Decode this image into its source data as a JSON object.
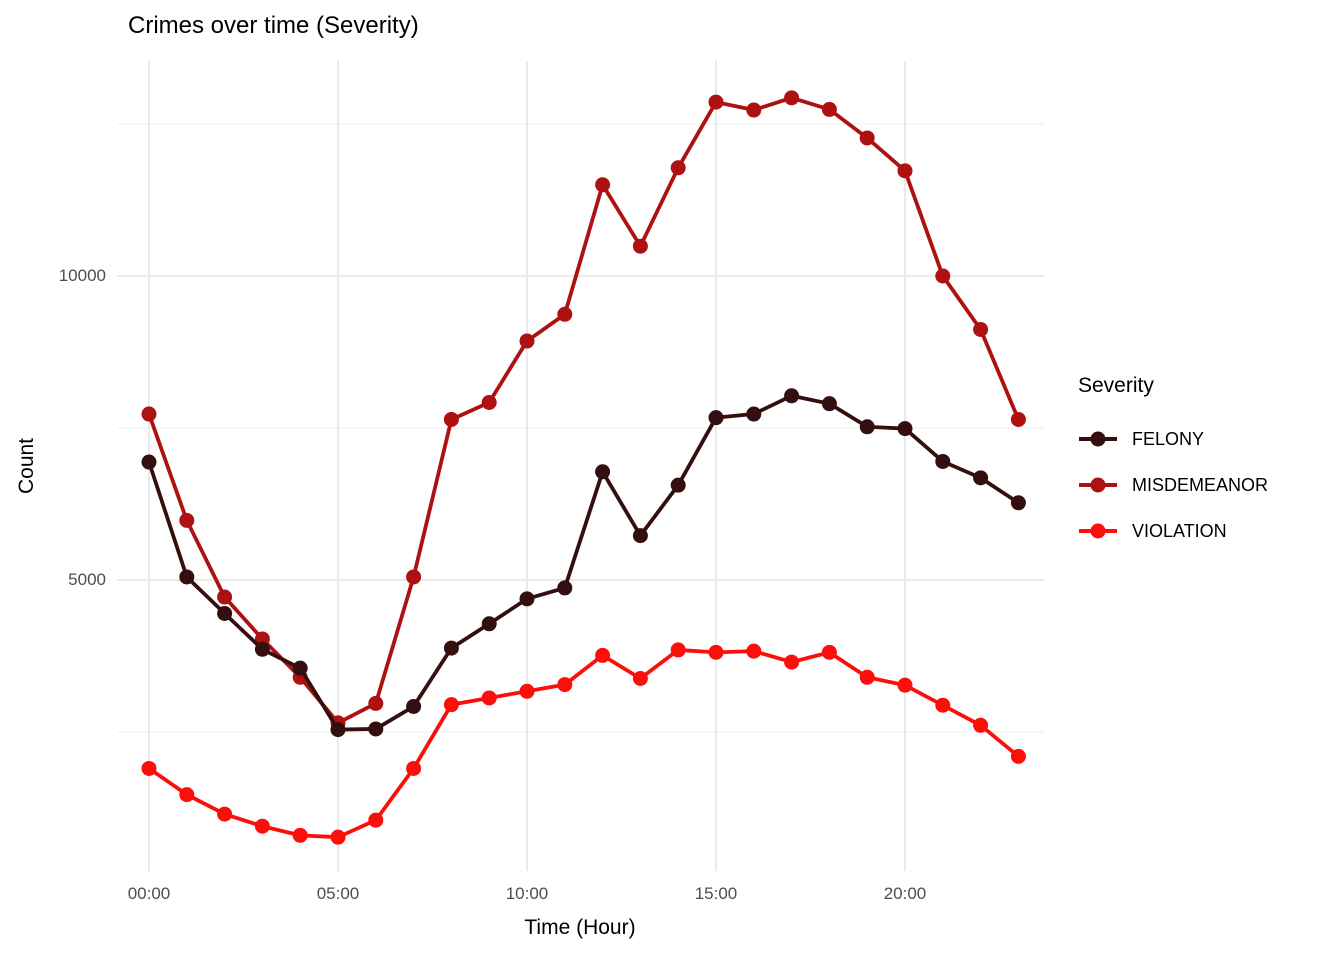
{
  "title": "Crimes over time (Severity)",
  "colors": {
    "background": "#ffffff",
    "grid_major": "#e4e4e4",
    "grid_minor": "#efefef",
    "tick_label": "#4d4d4d",
    "text": "#000000"
  },
  "chart_data": {
    "type": "line",
    "title": "Crimes over time (Severity)",
    "xlabel": "Time (Hour)",
    "ylabel": "Count",
    "grid": "horizontal major+minor, vertical major only",
    "x_hours": [
      0,
      1,
      2,
      3,
      4,
      5,
      6,
      7,
      8,
      9,
      10,
      11,
      12,
      13,
      14,
      15,
      16,
      17,
      18,
      19,
      20,
      21,
      22,
      23
    ],
    "x_tick_hours": [
      0,
      5,
      10,
      15,
      20
    ],
    "x_tick_labels": [
      "00:00",
      "05:00",
      "10:00",
      "15:00",
      "20:00"
    ],
    "y_tick_values": [
      5000,
      10000
    ],
    "y_tick_labels": [
      "5000",
      "10000"
    ],
    "y_minor_gridlines": [
      2500,
      7500,
      12500
    ],
    "ylim": [
      170,
      13540
    ],
    "legend": {
      "title": "Severity",
      "position": "right"
    },
    "series": [
      {
        "name": "FELONY",
        "color": "#330f0f",
        "values": [
          6940,
          5050,
          4450,
          3860,
          3550,
          2540,
          2550,
          2920,
          3880,
          4280,
          4690,
          4870,
          6780,
          5730,
          6560,
          7670,
          7730,
          8030,
          7900,
          7520,
          7490,
          6950,
          6680,
          6270
        ]
      },
      {
        "name": "MISDEMEANOR",
        "color": "#ad1111",
        "values": [
          7730,
          5980,
          4720,
          4030,
          3400,
          2650,
          2970,
          5050,
          7640,
          7920,
          8930,
          9370,
          11500,
          10490,
          11780,
          12860,
          12730,
          12930,
          12740,
          12270,
          11730,
          10000,
          9120,
          7640
        ]
      },
      {
        "name": "VIOLATION",
        "color": "#fb0f0a",
        "values": [
          1900,
          1470,
          1150,
          950,
          800,
          770,
          1050,
          1900,
          2950,
          3060,
          3170,
          3280,
          3760,
          3380,
          3850,
          3810,
          3830,
          3650,
          3810,
          3400,
          3270,
          2940,
          2610,
          2100
        ]
      }
    ]
  }
}
